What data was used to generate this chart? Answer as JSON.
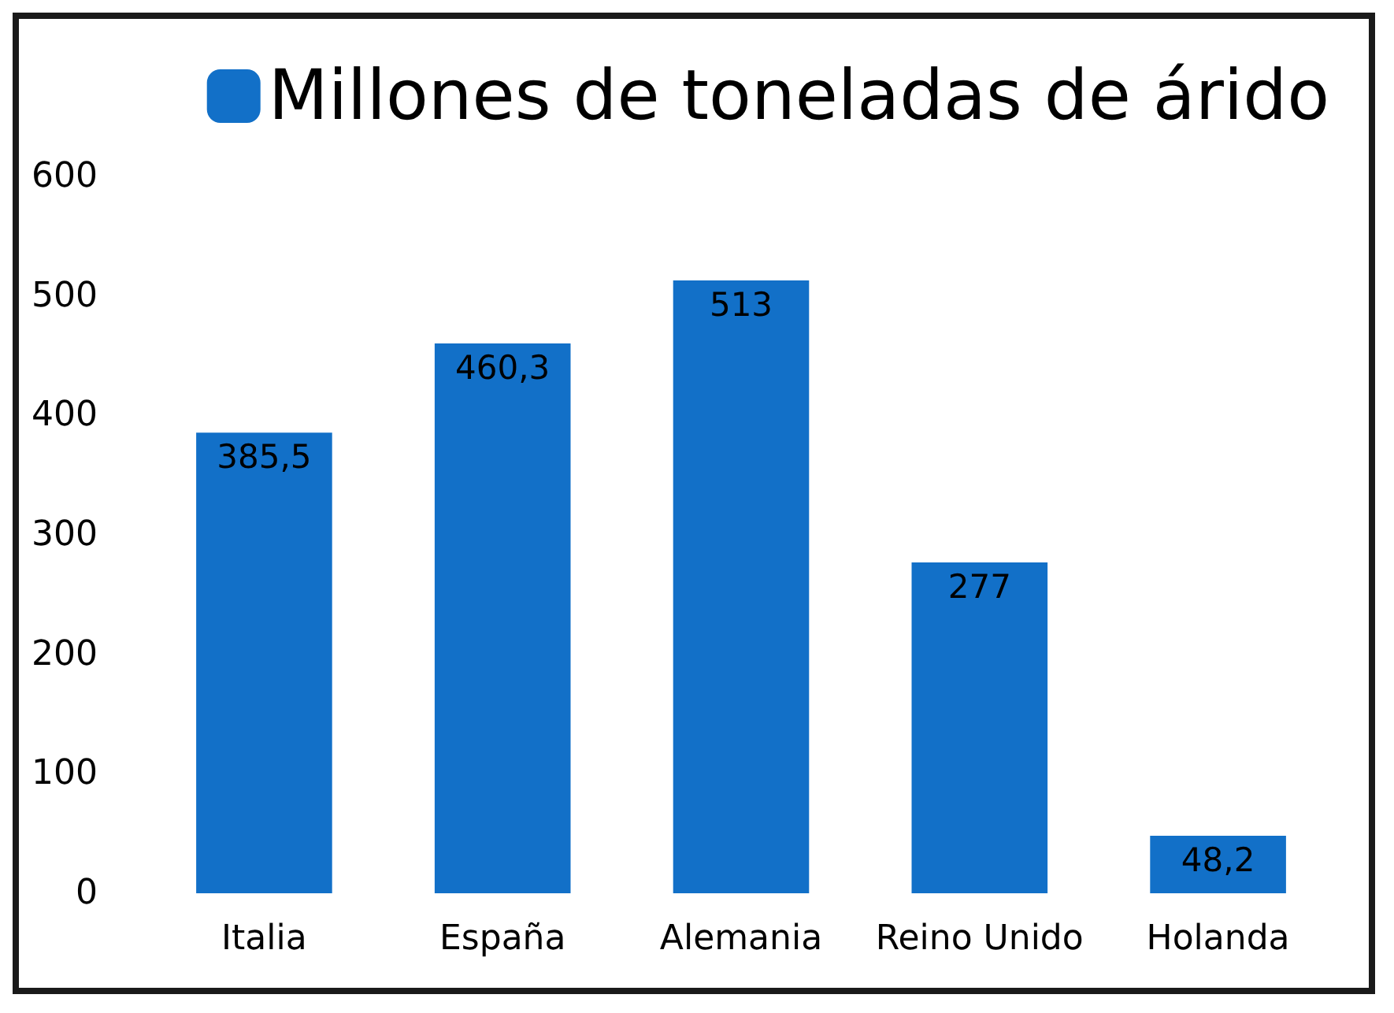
{
  "chart_data": {
    "type": "bar",
    "categories": [
      "Italia",
      "España",
      "Alemania",
      "Reino Unido",
      "Holanda"
    ],
    "series": [
      {
        "name": "Millones de toneladas de árido",
        "color": "#1270c8",
        "values": [
          385.5,
          460.3,
          513,
          277,
          48.2
        ],
        "value_labels": [
          "385,5",
          "460,3",
          "513",
          "277",
          "48,2"
        ]
      }
    ],
    "ylim": [
      0,
      600
    ],
    "yticks": [
      0,
      100,
      200,
      300,
      400,
      500,
      600
    ],
    "grid": false,
    "legend": "top right"
  }
}
